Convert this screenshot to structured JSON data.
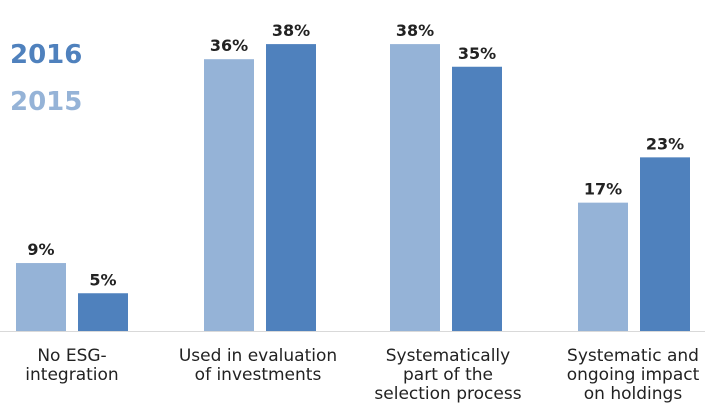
{
  "chart_data": {
    "type": "bar",
    "categories": [
      "No ESG-\nintegration",
      "Used in evaluation\nof investments",
      "Systematically\npart of the\nselection process",
      "Systematic and\nongoing impact\non holdings"
    ],
    "series": [
      {
        "name": "2015",
        "values": [
          9,
          36,
          38,
          17
        ],
        "labels": [
          "9%",
          "36%",
          "38%",
          "17%"
        ],
        "color": "#95b3d7"
      },
      {
        "name": "2016",
        "values": [
          5,
          38,
          35,
          23
        ],
        "labels": [
          "5%",
          "38%",
          "35%",
          "23%"
        ],
        "color": "#4f81bd"
      }
    ],
    "ylim": [
      0,
      40
    ],
    "grid": false,
    "legend_position": "top-left",
    "legend_order": [
      "2016",
      "2015"
    ]
  }
}
